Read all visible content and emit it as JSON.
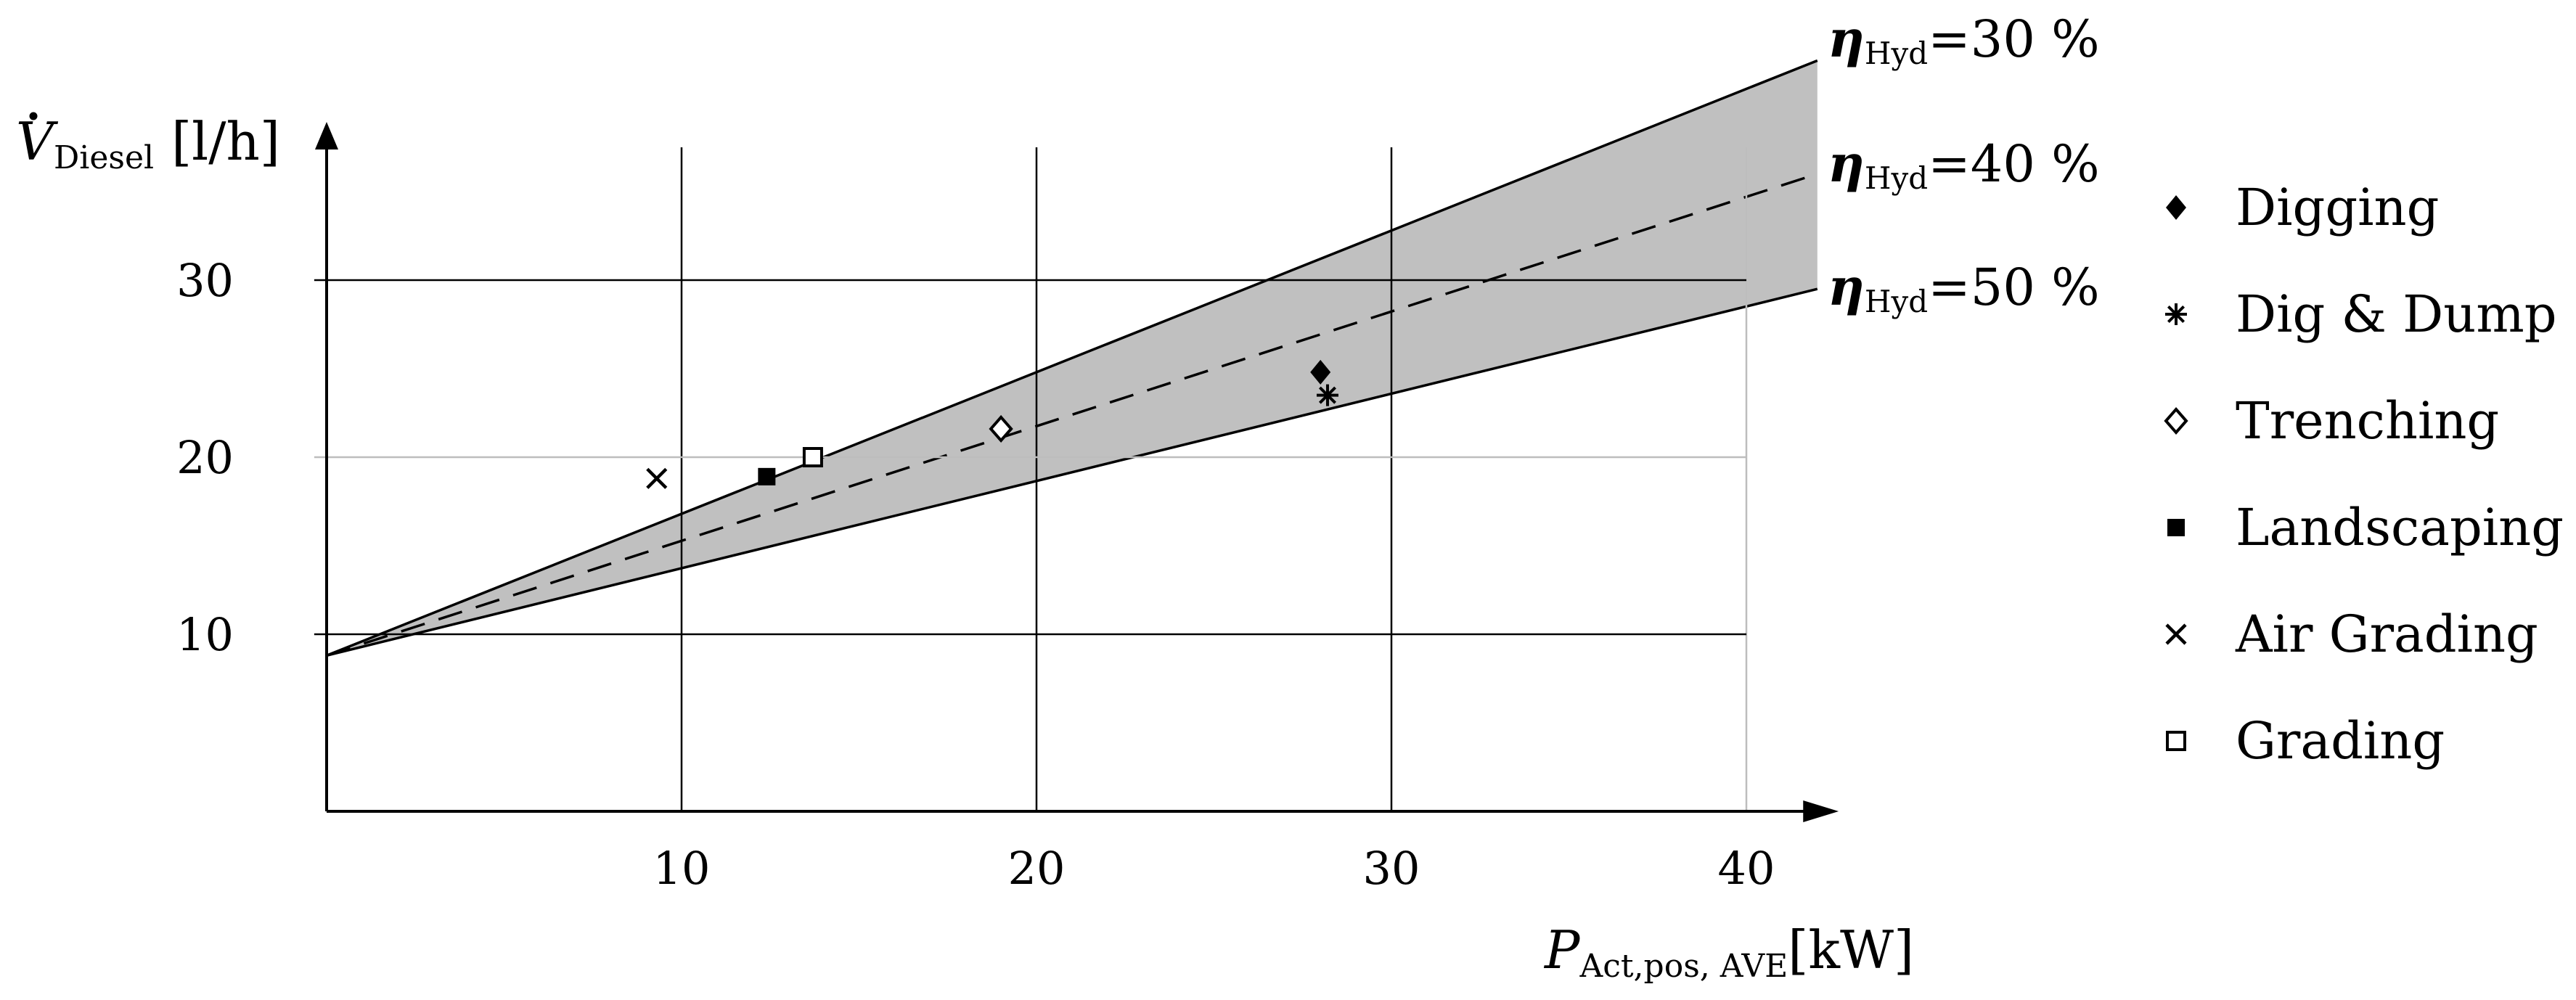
{
  "chart_data": {
    "type": "scatter",
    "xlabel": {
      "main": "P",
      "sub": "Act,pos, AVE",
      "unit": "[kW]"
    },
    "ylabel": {
      "main": "V",
      "sub": "Diesel",
      "unit": "[l/h]"
    },
    "xlim": [
      0,
      42
    ],
    "ylim": [
      0,
      38
    ],
    "xticks": [
      10,
      20,
      30,
      40
    ],
    "yticks": [
      10,
      20,
      30
    ],
    "grid": true,
    "band": {
      "fill": "#c0c0c0",
      "lines": [
        {
          "eta_label": "η",
          "eta_sub": "Hyd",
          "eta_value": "=30 %",
          "intercept": 8.8,
          "end_value": 42.4,
          "style": "solid"
        },
        {
          "eta_label": "η",
          "eta_sub": "Hyd",
          "eta_value": "=40 %",
          "intercept": 8.8,
          "end_value": 36.0,
          "style": "dashed"
        },
        {
          "eta_label": "η",
          "eta_sub": "Hyd",
          "eta_value": "=50 %",
          "intercept": 8.8,
          "end_value": 29.5,
          "style": "solid"
        }
      ]
    },
    "legend_position": "right",
    "series": [
      {
        "name": "Digging",
        "marker": "diamond-filled",
        "points": [
          [
            28.0,
            24.8
          ]
        ]
      },
      {
        "name": "Dig & Dump",
        "marker": "asterisk",
        "points": [
          [
            28.2,
            23.5
          ]
        ]
      },
      {
        "name": "Trenching",
        "marker": "diamond-open",
        "points": [
          [
            19.0,
            21.6
          ]
        ]
      },
      {
        "name": "Landscaping",
        "marker": "square-filled",
        "points": [
          [
            12.4,
            18.9
          ]
        ]
      },
      {
        "name": "Air Grading",
        "marker": "cross",
        "points": [
          [
            9.3,
            18.8
          ]
        ]
      },
      {
        "name": "Grading",
        "marker": "square-open",
        "points": [
          [
            13.7,
            20.0
          ]
        ]
      }
    ]
  }
}
